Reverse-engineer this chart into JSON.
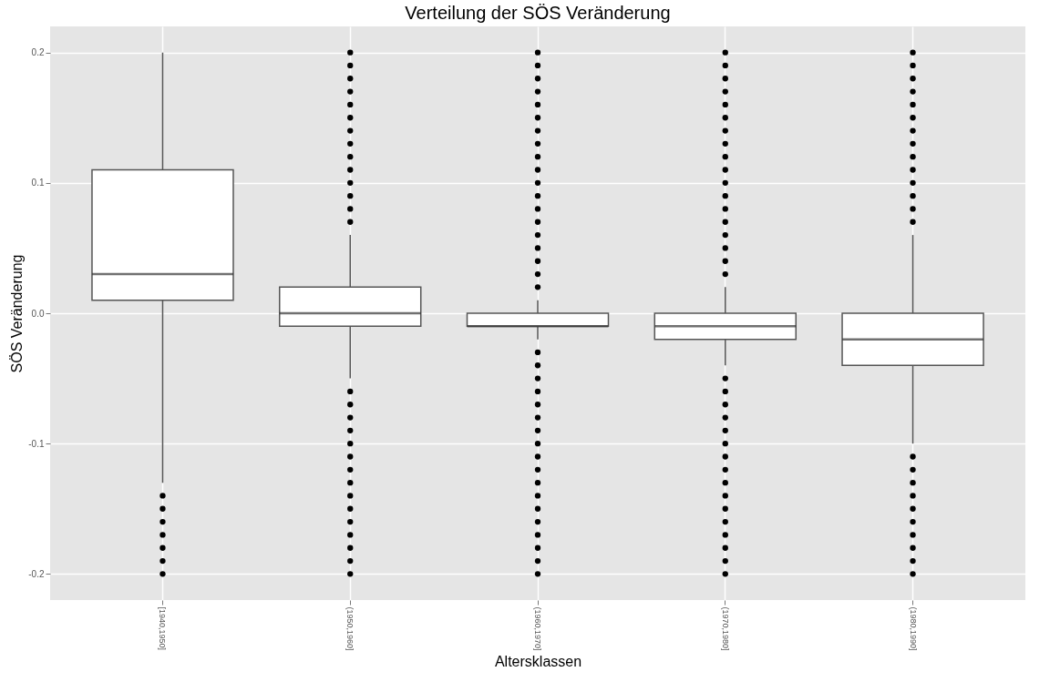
{
  "chart_data": {
    "type": "box",
    "title": "Verteilung der SÖS Veränderung",
    "xlabel": "Altersklassen",
    "ylabel": "SÖS Veränderung",
    "categories": [
      "[1940,1950]",
      "(1950,1960]",
      "(1960,1970]",
      "(1970,1980]",
      "(1980,1990]"
    ],
    "boxes": [
      {
        "low": -0.13,
        "q1": 0.01,
        "median": 0.03,
        "q3": 0.11,
        "high": 0.2,
        "outliers": [
          -0.14,
          -0.15,
          -0.16,
          -0.17,
          -0.18,
          -0.19,
          -0.2
        ]
      },
      {
        "low": -0.05,
        "q1": -0.01,
        "median": 0.0,
        "q3": 0.02,
        "high": 0.06,
        "outliers": [
          0.07,
          0.08,
          0.09,
          0.1,
          0.11,
          0.12,
          0.13,
          0.14,
          0.15,
          0.16,
          0.17,
          0.18,
          0.19,
          0.2,
          -0.06,
          -0.07,
          -0.08,
          -0.09,
          -0.1,
          -0.11,
          -0.12,
          -0.13,
          -0.14,
          -0.15,
          -0.16,
          -0.17,
          -0.18,
          -0.19,
          -0.2
        ]
      },
      {
        "low": -0.02,
        "q1": -0.01,
        "median": -0.01,
        "q3": 0.0,
        "high": 0.01,
        "outliers": [
          0.02,
          0.03,
          0.04,
          0.05,
          0.06,
          0.07,
          0.08,
          0.09,
          0.1,
          0.11,
          0.12,
          0.13,
          0.14,
          0.15,
          0.16,
          0.17,
          0.18,
          0.19,
          0.2,
          -0.03,
          -0.04,
          -0.05,
          -0.06,
          -0.07,
          -0.08,
          -0.09,
          -0.1,
          -0.11,
          -0.12,
          -0.13,
          -0.14,
          -0.15,
          -0.16,
          -0.17,
          -0.18,
          -0.19,
          -0.2
        ]
      },
      {
        "low": -0.04,
        "q1": -0.02,
        "median": -0.01,
        "q3": 0.0,
        "high": 0.02,
        "outliers": [
          0.03,
          0.04,
          0.05,
          0.06,
          0.07,
          0.08,
          0.09,
          0.1,
          0.11,
          0.12,
          0.13,
          0.14,
          0.15,
          0.16,
          0.17,
          0.18,
          0.19,
          0.2,
          -0.05,
          -0.06,
          -0.07,
          -0.08,
          -0.09,
          -0.1,
          -0.11,
          -0.12,
          -0.13,
          -0.14,
          -0.15,
          -0.16,
          -0.17,
          -0.18,
          -0.19,
          -0.2
        ]
      },
      {
        "low": -0.1,
        "q1": -0.04,
        "median": -0.02,
        "q3": 0.0,
        "high": 0.06,
        "outliers": [
          0.07,
          0.08,
          0.09,
          0.1,
          0.11,
          0.12,
          0.13,
          0.14,
          0.15,
          0.16,
          0.17,
          0.18,
          0.19,
          0.2,
          -0.11,
          -0.12,
          -0.13,
          -0.14,
          -0.15,
          -0.16,
          -0.17,
          -0.18,
          -0.19,
          -0.2
        ]
      }
    ],
    "color": "#ffffff",
    "ylim": [
      -0.22,
      0.22
    ],
    "yticks": [
      {
        "value": -0.2,
        "label": "-0.2"
      },
      {
        "value": -0.1,
        "label": "-0.1"
      },
      {
        "value": 0.0,
        "label": "0.0"
      },
      {
        "value": 0.1,
        "label": "0.1"
      },
      {
        "value": 0.2,
        "label": "0.2"
      }
    ],
    "grid": true,
    "marker": "circle"
  }
}
